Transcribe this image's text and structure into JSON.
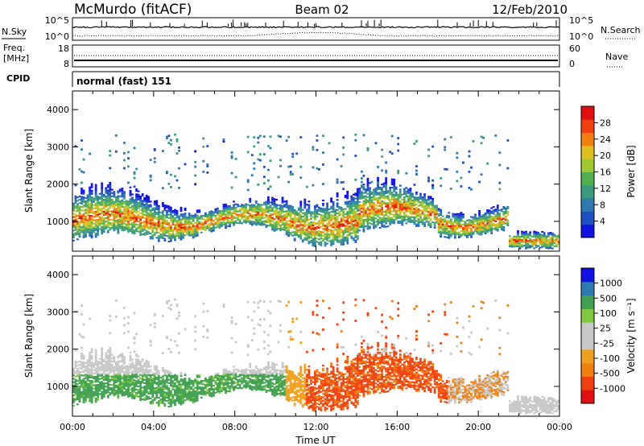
{
  "header": {
    "station": "McMurdo (fitACF)",
    "beam": "Beam 02",
    "date": "12/Feb/2010"
  },
  "strip": {
    "nsky_label": "N.Sky",
    "nsearch_label": "N.Search",
    "left_ticks": [
      "10^5",
      "10^0"
    ],
    "right_ticks": [
      "10^5",
      "10^0"
    ],
    "freq_label_1": "Freq.",
    "freq_label_2": "[MHz]",
    "freq_ticks": [
      "18",
      "8"
    ],
    "nave_label": "Nave",
    "nave_ticks": [
      "60",
      "0"
    ],
    "cpid_label": "CPID",
    "cpid_value": "normal (fast) 151"
  },
  "colors": {
    "power": [
      "#1010e0",
      "#2050c0",
      "#2e7ab0",
      "#3a9a80",
      "#50b050",
      "#a0c830",
      "#e0c020",
      "#f08010",
      "#f04010",
      "#e01010"
    ],
    "velocity": [
      "#e01010",
      "#f04010",
      "#f08010",
      "#f0a020",
      "#c8c8c8",
      "#c8c8c8",
      "#80c840",
      "#40a050",
      "#2e7ab0",
      "#1010e0"
    ]
  },
  "chart_data": [
    {
      "type": "heatmap",
      "ylabel": "Slant Range [km]",
      "xlabel": "",
      "y_ticks": [
        "1000",
        "2000",
        "3000",
        "4000"
      ],
      "ylim": [
        200,
        4500
      ],
      "colorbar": {
        "label": "Power [dB]",
        "ticks": [
          "4",
          "8",
          "12",
          "16",
          "20",
          "24",
          "28"
        ],
        "range": [
          0,
          32
        ]
      }
    },
    {
      "type": "heatmap",
      "ylabel": "Slant Range [km]",
      "xlabel": "Time UT",
      "x_ticks": [
        "00:00",
        "04:00",
        "08:00",
        "12:00",
        "16:00",
        "20:00",
        "00:00"
      ],
      "y_ticks": [
        "1000",
        "2000",
        "3000",
        "4000"
      ],
      "ylim": [
        200,
        4500
      ],
      "colorbar": {
        "label": "Velocity [m s⁻¹]",
        "ticks": [
          "1000",
          "500",
          "100",
          "25",
          "-25",
          "-100",
          "-500",
          "-1000"
        ]
      }
    }
  ]
}
